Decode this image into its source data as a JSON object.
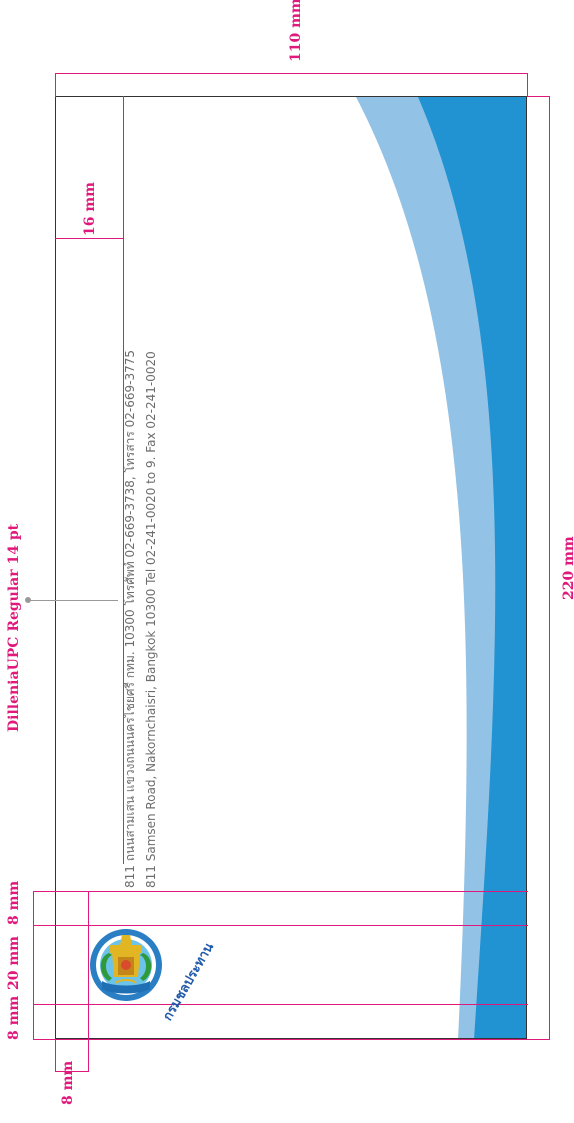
{
  "dimensions": {
    "height_label": "110 mm",
    "top_margin_label": "16 mm",
    "width_label": "220 mm",
    "edge_margin_label": "8 mm",
    "font_spec_label": "DilleniaUPC Regular 14 pt",
    "logo_margin_left_label": "8 mm",
    "logo_size_label": "20 mm",
    "logo_margin_right_label": "8 mm"
  },
  "envelope": {
    "address_thai": "811 ถนนสามเสน แขวงถนนนครไชยศรี กทม. 10300 โทรศัพท์ 02-669-3738, โทรสาร 02-669-3775",
    "address_english": "811 Samsen Road, Nakornchaisri, Bangkok 10300 Tel 02-241-0020 to 9. Fax 02-241-0020",
    "logo_text": "กรมชลประทาน"
  },
  "colors": {
    "guide": "#e0197d",
    "wave_dark": "#2192d2",
    "wave_light": "#92c2e5",
    "address_text": "#6d6d6d",
    "seal_blue": "#2a7fc4",
    "seal_gold": "#e2b622",
    "seal_green": "#2f9a3a"
  }
}
